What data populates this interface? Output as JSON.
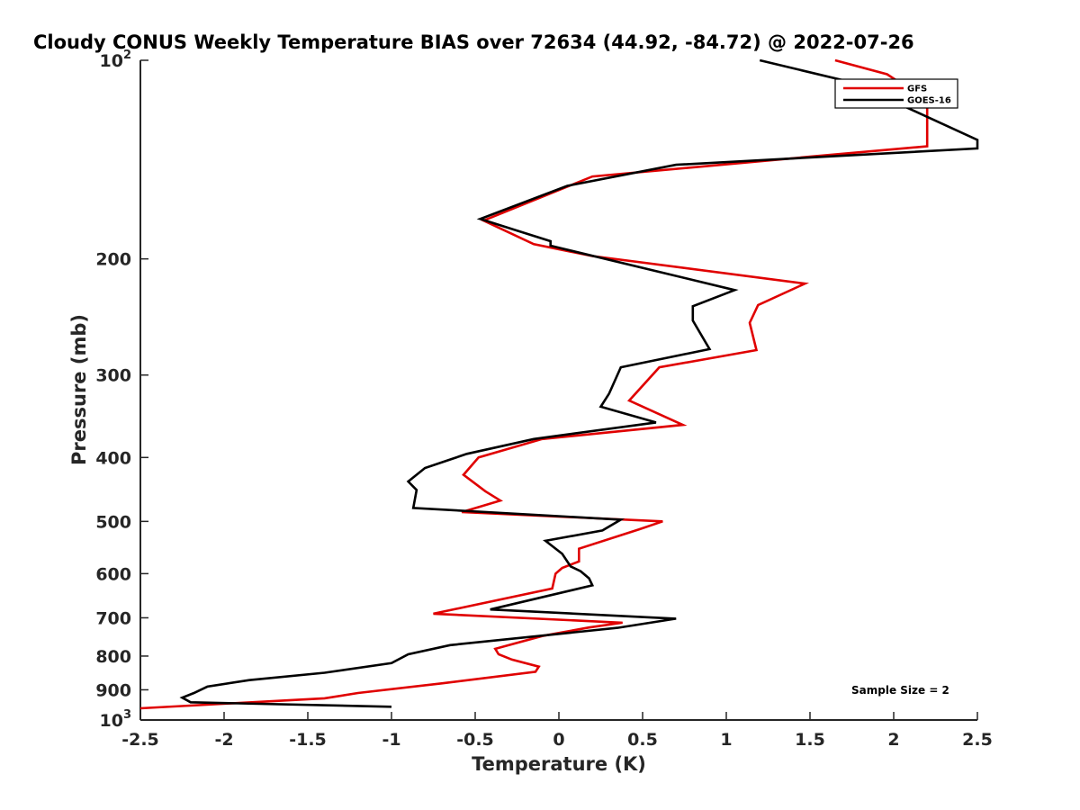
{
  "chart_data": {
    "type": "line",
    "title": "Cloudy CONUS Weekly Temperature BIAS over 72634 (44.92, -84.72) @ 2022-07-26",
    "xlabel": "Temperature (K)",
    "ylabel": "Pressure (mb)",
    "xlim": [
      -2.5,
      2.5
    ],
    "ylim": [
      100,
      1000
    ],
    "y_scale": "log",
    "y_reversed": true,
    "grid": false,
    "legend_position": "top-right",
    "x_ticks": [
      "-2.5",
      "-2",
      "-1.5",
      "-1",
      "-0.5",
      "0",
      "0.5",
      "1",
      "1.5",
      "2",
      "2.5"
    ],
    "x_tick_values": [
      -2.5,
      -2,
      -1.5,
      -1,
      -0.5,
      0,
      0.5,
      1,
      1.5,
      2,
      2.5
    ],
    "y_ticks": [
      {
        "value": 100,
        "base": "10",
        "exp": "2"
      },
      {
        "value": 200,
        "label": "200"
      },
      {
        "value": 300,
        "label": "300"
      },
      {
        "value": 400,
        "label": "400"
      },
      {
        "value": 500,
        "label": "500"
      },
      {
        "value": 600,
        "label": "600"
      },
      {
        "value": 700,
        "label": "700"
      },
      {
        "value": 800,
        "label": "800"
      },
      {
        "value": 900,
        "label": "900"
      },
      {
        "value": 1000,
        "base": "10",
        "exp": "3"
      }
    ],
    "annotation": "Sample Size = 2",
    "series": [
      {
        "name": "GFS",
        "color": "#e00000",
        "points": [
          [
            1.65,
            100
          ],
          [
            1.96,
            105
          ],
          [
            2.2,
            115
          ],
          [
            2.2,
            135
          ],
          [
            1.5,
            140
          ],
          [
            0.2,
            150
          ],
          [
            -0.45,
            175
          ],
          [
            -0.15,
            190
          ],
          [
            0.2,
            198
          ],
          [
            1.47,
            218
          ],
          [
            1.19,
            235
          ],
          [
            1.14,
            250
          ],
          [
            1.18,
            275
          ],
          [
            0.6,
            292
          ],
          [
            0.42,
            328
          ],
          [
            0.74,
            357
          ],
          [
            -0.1,
            375
          ],
          [
            -0.48,
            400
          ],
          [
            -0.57,
            425
          ],
          [
            -0.44,
            450
          ],
          [
            -0.35,
            465
          ],
          [
            -0.58,
            484
          ],
          [
            0.62,
            500
          ],
          [
            0.48,
            514
          ],
          [
            0.12,
            550
          ],
          [
            0.12,
            575
          ],
          [
            0.02,
            588
          ],
          [
            -0.02,
            600
          ],
          [
            -0.04,
            632
          ],
          [
            -0.75,
            690
          ],
          [
            0.38,
            712
          ],
          [
            0.18,
            724
          ],
          [
            -0.1,
            746
          ],
          [
            -0.38,
            780
          ],
          [
            -0.36,
            795
          ],
          [
            -0.28,
            810
          ],
          [
            -0.12,
            830
          ],
          [
            -0.14,
            845
          ],
          [
            -0.7,
            880
          ],
          [
            -1.2,
            910
          ],
          [
            -1.4,
            927
          ],
          [
            -2.5,
            960
          ]
        ]
      },
      {
        "name": "GOES-16",
        "color": "#000000",
        "points": [
          [
            1.2,
            100
          ],
          [
            1.75,
            108
          ],
          [
            2.5,
            132
          ],
          [
            2.5,
            136
          ],
          [
            0.7,
            144
          ],
          [
            0.05,
            155
          ],
          [
            -0.47,
            174
          ],
          [
            -0.05,
            188
          ],
          [
            -0.05,
            191
          ],
          [
            1.05,
            223
          ],
          [
            0.8,
            236
          ],
          [
            0.8,
            248
          ],
          [
            0.9,
            274
          ],
          [
            0.37,
            292
          ],
          [
            0.3,
            320
          ],
          [
            0.25,
            335
          ],
          [
            0.58,
            354
          ],
          [
            -0.15,
            375
          ],
          [
            -0.55,
            395
          ],
          [
            -0.8,
            415
          ],
          [
            -0.9,
            435
          ],
          [
            -0.85,
            448
          ],
          [
            -0.87,
            477
          ],
          [
            0.37,
            497
          ],
          [
            0.26,
            516
          ],
          [
            -0.08,
            535
          ],
          [
            0.02,
            560
          ],
          [
            0.07,
            585
          ],
          [
            0.13,
            595
          ],
          [
            0.18,
            610
          ],
          [
            0.2,
            625
          ],
          [
            -0.41,
            680
          ],
          [
            0.7,
            702
          ],
          [
            0.35,
            725
          ],
          [
            -0.65,
            770
          ],
          [
            -0.9,
            795
          ],
          [
            -1.0,
            820
          ],
          [
            -1.4,
            848
          ],
          [
            -1.85,
            870
          ],
          [
            -2.1,
            890
          ],
          [
            -2.18,
            910
          ],
          [
            -2.25,
            925
          ],
          [
            -2.2,
            940
          ],
          [
            -1.0,
            955
          ]
        ]
      }
    ]
  }
}
